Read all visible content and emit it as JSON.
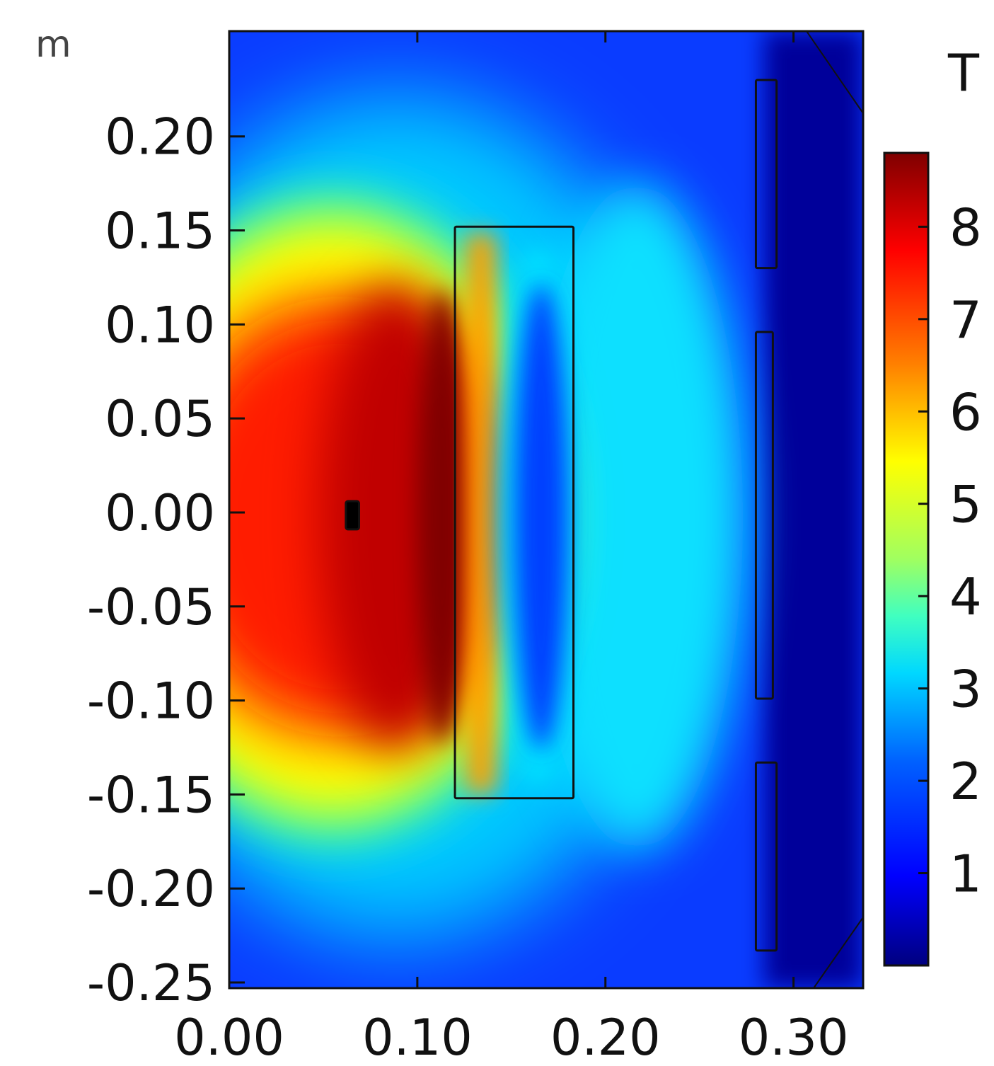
{
  "chart_data": {
    "type": "heatmap",
    "title": "",
    "x_axis": {
      "range": [
        0.0,
        0.337
      ],
      "ticks": [
        0.0,
        0.1,
        0.2,
        0.3
      ],
      "tick_labels": [
        "0.00",
        "0.10",
        "0.20",
        "0.30"
      ]
    },
    "y_axis": {
      "unit_label": "m",
      "range": [
        -0.253,
        0.256
      ],
      "ticks": [
        0.2,
        0.15,
        0.1,
        0.05,
        0.0,
        -0.05,
        -0.1,
        -0.15,
        -0.2,
        -0.25
      ],
      "tick_labels": [
        "0.20",
        "0.15",
        "0.10",
        "0.05",
        "0.00",
        "-0.05",
        "-0.10",
        "-0.15",
        "-0.20",
        "-0.25"
      ]
    },
    "colorbar": {
      "title": "T",
      "range": [
        0.0,
        8.8
      ],
      "ticks": [
        1,
        2,
        3,
        4,
        5,
        6,
        7,
        8
      ],
      "tick_labels": [
        "1",
        "2",
        "3",
        "4",
        "5",
        "6",
        "7",
        "8"
      ],
      "colormap": "jet",
      "colors": [
        "#00007f",
        "#0000ff",
        "#0080ff",
        "#00ffff",
        "#80ff80",
        "#ffff00",
        "#ff8000",
        "#ff0000",
        "#7f0000"
      ]
    },
    "regions": [
      {
        "name": "coil",
        "x": [
          0.12,
          0.183
        ],
        "y": [
          -0.152,
          0.152
        ]
      },
      {
        "name": "shield-top",
        "x": [
          0.28,
          0.291
        ],
        "y": [
          0.13,
          0.23
        ]
      },
      {
        "name": "shield-middle",
        "x": [
          0.28,
          0.289
        ],
        "y": [
          -0.099,
          0.096
        ]
      },
      {
        "name": "shield-bottom",
        "x": [
          0.28,
          0.291
        ],
        "y": [
          -0.233,
          -0.133
        ]
      },
      {
        "name": "probe",
        "x": [
          0.062,
          0.069
        ],
        "y": [
          -0.009,
          0.006
        ]
      }
    ]
  }
}
